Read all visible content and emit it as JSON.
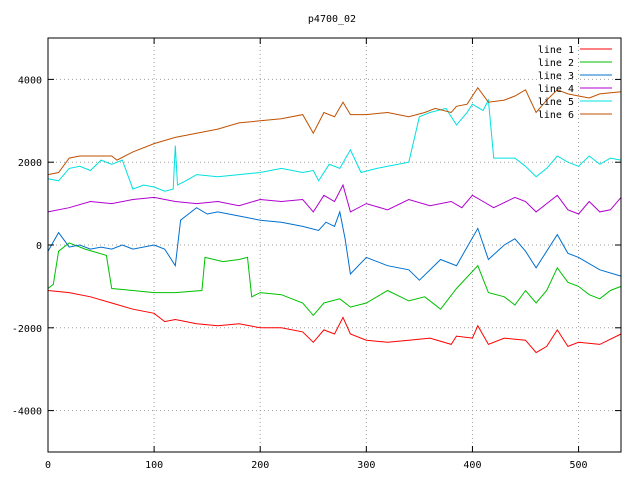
{
  "chart_data": {
    "type": "line",
    "title": "p4700_02",
    "xlabel": "",
    "ylabel": "",
    "xlim": [
      0,
      540
    ],
    "ylim": [
      -5000,
      5000
    ],
    "xticks": [
      0,
      100,
      200,
      300,
      400,
      500
    ],
    "yticks": [
      -4000,
      -2000,
      0,
      2000,
      4000
    ],
    "grid": true,
    "legend_position": "top-right",
    "series": [
      {
        "name": "line 1",
        "color": "#ff0000",
        "points": [
          [
            0,
            -1100
          ],
          [
            20,
            -1150
          ],
          [
            40,
            -1250
          ],
          [
            60,
            -1400
          ],
          [
            80,
            -1550
          ],
          [
            100,
            -1650
          ],
          [
            110,
            -1850
          ],
          [
            120,
            -1800
          ],
          [
            140,
            -1900
          ],
          [
            160,
            -1950
          ],
          [
            180,
            -1900
          ],
          [
            200,
            -2000
          ],
          [
            220,
            -2000
          ],
          [
            240,
            -2100
          ],
          [
            250,
            -2350
          ],
          [
            260,
            -2050
          ],
          [
            270,
            -2150
          ],
          [
            278,
            -1750
          ],
          [
            285,
            -2150
          ],
          [
            300,
            -2300
          ],
          [
            320,
            -2350
          ],
          [
            340,
            -2300
          ],
          [
            360,
            -2250
          ],
          [
            380,
            -2400
          ],
          [
            385,
            -2200
          ],
          [
            400,
            -2250
          ],
          [
            405,
            -1950
          ],
          [
            415,
            -2400
          ],
          [
            430,
            -2250
          ],
          [
            450,
            -2300
          ],
          [
            460,
            -2600
          ],
          [
            470,
            -2450
          ],
          [
            480,
            -2050
          ],
          [
            490,
            -2450
          ],
          [
            500,
            -2350
          ],
          [
            520,
            -2400
          ],
          [
            540,
            -2150
          ]
        ]
      },
      {
        "name": "line 2",
        "color": "#00c000",
        "points": [
          [
            0,
            -1050
          ],
          [
            5,
            -950
          ],
          [
            10,
            -150
          ],
          [
            20,
            50
          ],
          [
            35,
            -100
          ],
          [
            55,
            -250
          ],
          [
            60,
            -1050
          ],
          [
            80,
            -1100
          ],
          [
            100,
            -1150
          ],
          [
            120,
            -1150
          ],
          [
            145,
            -1100
          ],
          [
            148,
            -300
          ],
          [
            165,
            -400
          ],
          [
            180,
            -350
          ],
          [
            188,
            -300
          ],
          [
            192,
            -1250
          ],
          [
            200,
            -1150
          ],
          [
            220,
            -1200
          ],
          [
            240,
            -1400
          ],
          [
            250,
            -1700
          ],
          [
            260,
            -1400
          ],
          [
            275,
            -1300
          ],
          [
            285,
            -1500
          ],
          [
            300,
            -1400
          ],
          [
            320,
            -1100
          ],
          [
            340,
            -1350
          ],
          [
            355,
            -1250
          ],
          [
            370,
            -1550
          ],
          [
            385,
            -1050
          ],
          [
            405,
            -500
          ],
          [
            415,
            -1150
          ],
          [
            430,
            -1250
          ],
          [
            440,
            -1450
          ],
          [
            450,
            -1100
          ],
          [
            460,
            -1400
          ],
          [
            470,
            -1100
          ],
          [
            480,
            -550
          ],
          [
            490,
            -900
          ],
          [
            500,
            -1000
          ],
          [
            510,
            -1200
          ],
          [
            520,
            -1300
          ],
          [
            530,
            -1100
          ],
          [
            540,
            -1000
          ]
        ]
      },
      {
        "name": "line 3",
        "color": "#0070d0",
        "points": [
          [
            0,
            -150
          ],
          [
            10,
            300
          ],
          [
            20,
            -50
          ],
          [
            30,
            0
          ],
          [
            40,
            -100
          ],
          [
            50,
            -50
          ],
          [
            60,
            -100
          ],
          [
            70,
            0
          ],
          [
            80,
            -100
          ],
          [
            100,
            0
          ],
          [
            110,
            -100
          ],
          [
            120,
            -500
          ],
          [
            125,
            600
          ],
          [
            130,
            700
          ],
          [
            140,
            900
          ],
          [
            150,
            750
          ],
          [
            160,
            800
          ],
          [
            180,
            700
          ],
          [
            200,
            600
          ],
          [
            220,
            550
          ],
          [
            240,
            450
          ],
          [
            255,
            350
          ],
          [
            262,
            550
          ],
          [
            270,
            450
          ],
          [
            275,
            800
          ],
          [
            280,
            150
          ],
          [
            285,
            -700
          ],
          [
            300,
            -300
          ],
          [
            320,
            -500
          ],
          [
            340,
            -600
          ],
          [
            350,
            -850
          ],
          [
            370,
            -350
          ],
          [
            385,
            -500
          ],
          [
            395,
            -50
          ],
          [
            405,
            400
          ],
          [
            415,
            -350
          ],
          [
            430,
            0
          ],
          [
            440,
            150
          ],
          [
            450,
            -150
          ],
          [
            460,
            -550
          ],
          [
            470,
            -150
          ],
          [
            480,
            250
          ],
          [
            490,
            -200
          ],
          [
            500,
            -300
          ],
          [
            520,
            -600
          ],
          [
            540,
            -750
          ]
        ]
      },
      {
        "name": "line 4",
        "color": "#b000d0",
        "points": [
          [
            0,
            800
          ],
          [
            20,
            900
          ],
          [
            40,
            1050
          ],
          [
            60,
            1000
          ],
          [
            80,
            1100
          ],
          [
            100,
            1150
          ],
          [
            120,
            1050
          ],
          [
            140,
            1000
          ],
          [
            160,
            1050
          ],
          [
            180,
            950
          ],
          [
            200,
            1100
          ],
          [
            220,
            1050
          ],
          [
            240,
            1100
          ],
          [
            250,
            800
          ],
          [
            260,
            1200
          ],
          [
            270,
            1050
          ],
          [
            278,
            1450
          ],
          [
            285,
            800
          ],
          [
            300,
            1000
          ],
          [
            320,
            850
          ],
          [
            340,
            1100
          ],
          [
            360,
            950
          ],
          [
            380,
            1050
          ],
          [
            390,
            900
          ],
          [
            400,
            1200
          ],
          [
            410,
            1050
          ],
          [
            420,
            900
          ],
          [
            440,
            1150
          ],
          [
            450,
            1050
          ],
          [
            460,
            800
          ],
          [
            470,
            1000
          ],
          [
            480,
            1200
          ],
          [
            490,
            850
          ],
          [
            500,
            750
          ],
          [
            510,
            1050
          ],
          [
            520,
            800
          ],
          [
            530,
            850
          ],
          [
            540,
            1150
          ]
        ]
      },
      {
        "name": "line 5",
        "color": "#00e0e0",
        "points": [
          [
            0,
            1600
          ],
          [
            10,
            1550
          ],
          [
            20,
            1850
          ],
          [
            30,
            1900
          ],
          [
            40,
            1800
          ],
          [
            50,
            2050
          ],
          [
            60,
            1950
          ],
          [
            70,
            2050
          ],
          [
            80,
            1350
          ],
          [
            90,
            1450
          ],
          [
            100,
            1400
          ],
          [
            110,
            1300
          ],
          [
            118,
            1350
          ],
          [
            120,
            2400
          ],
          [
            122,
            1450
          ],
          [
            130,
            1550
          ],
          [
            140,
            1700
          ],
          [
            160,
            1650
          ],
          [
            180,
            1700
          ],
          [
            200,
            1750
          ],
          [
            220,
            1850
          ],
          [
            240,
            1750
          ],
          [
            250,
            1800
          ],
          [
            255,
            1550
          ],
          [
            265,
            1950
          ],
          [
            275,
            1850
          ],
          [
            285,
            2300
          ],
          [
            295,
            1750
          ],
          [
            310,
            1850
          ],
          [
            320,
            1900
          ],
          [
            340,
            2000
          ],
          [
            350,
            3100
          ],
          [
            360,
            3200
          ],
          [
            375,
            3300
          ],
          [
            385,
            2900
          ],
          [
            395,
            3200
          ],
          [
            400,
            3400
          ],
          [
            410,
            3250
          ],
          [
            415,
            3500
          ],
          [
            420,
            2100
          ],
          [
            430,
            2100
          ],
          [
            440,
            2100
          ],
          [
            450,
            1900
          ],
          [
            460,
            1650
          ],
          [
            470,
            1850
          ],
          [
            480,
            2150
          ],
          [
            490,
            2000
          ],
          [
            500,
            1900
          ],
          [
            510,
            2150
          ],
          [
            520,
            1950
          ],
          [
            530,
            2100
          ],
          [
            540,
            2050
          ]
        ]
      },
      {
        "name": "line 6",
        "color": "#c05000",
        "points": [
          [
            0,
            1700
          ],
          [
            10,
            1750
          ],
          [
            20,
            2100
          ],
          [
            30,
            2150
          ],
          [
            50,
            2150
          ],
          [
            60,
            2150
          ],
          [
            65,
            2050
          ],
          [
            80,
            2250
          ],
          [
            100,
            2450
          ],
          [
            120,
            2600
          ],
          [
            140,
            2700
          ],
          [
            160,
            2800
          ],
          [
            180,
            2950
          ],
          [
            200,
            3000
          ],
          [
            220,
            3050
          ],
          [
            240,
            3150
          ],
          [
            250,
            2700
          ],
          [
            260,
            3200
          ],
          [
            270,
            3100
          ],
          [
            278,
            3450
          ],
          [
            285,
            3150
          ],
          [
            300,
            3150
          ],
          [
            320,
            3200
          ],
          [
            340,
            3100
          ],
          [
            355,
            3200
          ],
          [
            365,
            3300
          ],
          [
            380,
            3200
          ],
          [
            385,
            3350
          ],
          [
            395,
            3400
          ],
          [
            405,
            3800
          ],
          [
            415,
            3450
          ],
          [
            430,
            3500
          ],
          [
            440,
            3600
          ],
          [
            450,
            3750
          ],
          [
            460,
            3200
          ],
          [
            470,
            3500
          ],
          [
            480,
            3750
          ],
          [
            490,
            3650
          ],
          [
            500,
            3600
          ],
          [
            510,
            3550
          ],
          [
            520,
            3650
          ],
          [
            540,
            3700
          ]
        ]
      }
    ]
  }
}
